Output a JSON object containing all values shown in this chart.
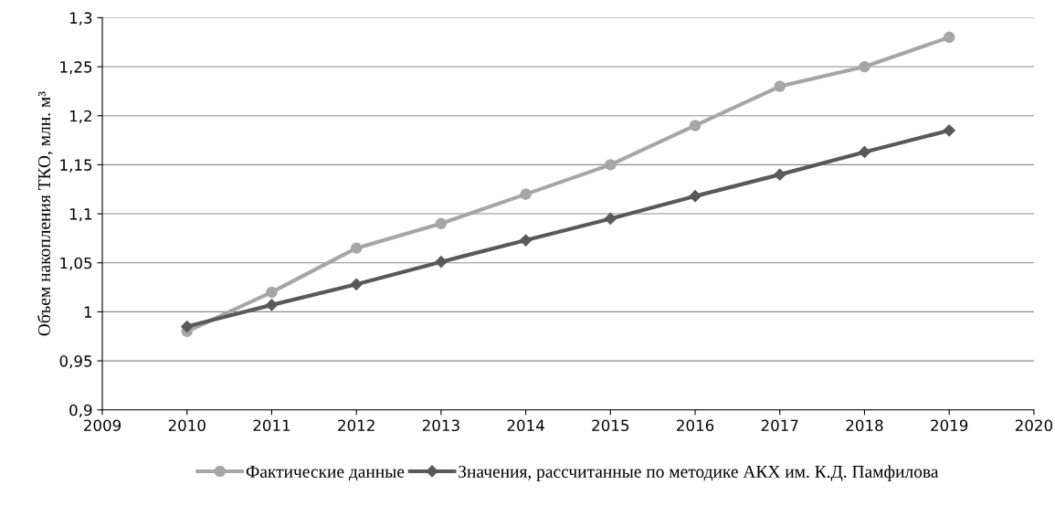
{
  "chart_data": {
    "type": "line",
    "ylabel": "Объем накопления ТКО, млн. м³",
    "x": [
      2010,
      2011,
      2012,
      2013,
      2014,
      2015,
      2016,
      2017,
      2018,
      2019
    ],
    "series": [
      {
        "name": "Фактические данные",
        "color": "#a6a6a6",
        "marker": "circle",
        "values": [
          0.98,
          1.02,
          1.065,
          1.09,
          1.12,
          1.15,
          1.19,
          1.23,
          1.25,
          1.28
        ]
      },
      {
        "name": "Значения, рассчитанные по методике АКХ им. К.Д. Памфилова",
        "color": "#595959",
        "marker": "diamond",
        "values": [
          0.985,
          1.007,
          1.028,
          1.051,
          1.073,
          1.095,
          1.118,
          1.14,
          1.163,
          1.185
        ]
      }
    ],
    "xlim": [
      2009,
      2020
    ],
    "xticks": [
      2009,
      2010,
      2011,
      2012,
      2013,
      2014,
      2015,
      2016,
      2017,
      2018,
      2019,
      2020
    ],
    "ylim": [
      0.9,
      1.3
    ],
    "yticks": [
      {
        "value": 0.9,
        "label": "0,9"
      },
      {
        "value": 0.95,
        "label": "0,95"
      },
      {
        "value": 1,
        "label": "1"
      },
      {
        "value": 1.05,
        "label": "1,05"
      },
      {
        "value": 1.1,
        "label": "1,1"
      },
      {
        "value": 1.15,
        "label": "1,15"
      },
      {
        "value": 1.2,
        "label": "1,2"
      },
      {
        "value": 1.25,
        "label": "1,25"
      },
      {
        "value": 1.3,
        "label": "1,3"
      }
    ],
    "grid": "y",
    "legend": "bottom",
    "line_style": "solid"
  }
}
